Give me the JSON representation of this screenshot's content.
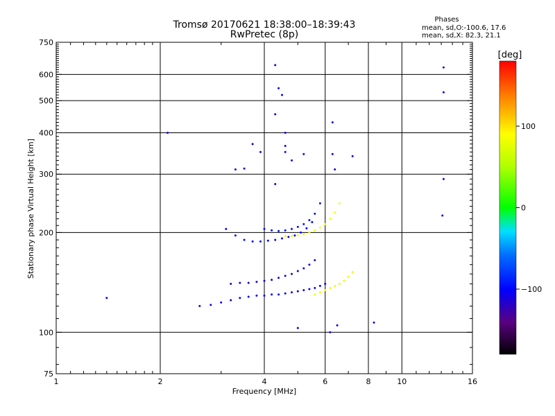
{
  "title": {
    "line1": "Tromsø 20170621 18:38:00–18:39:43",
    "line2": "RwPretec (8p)"
  },
  "stats": {
    "heading": "Phases",
    "o_line": "mean, sd,O:-100.6, 17.6",
    "x_line": "mean, sd,X:  82.3, 21.1"
  },
  "chart_data": {
    "type": "scatter",
    "xlabel": "Frequency [MHz]",
    "ylabel": "Stationary phase Virtual Height [km]",
    "xscale": "log",
    "yscale": "log",
    "xlim": [
      1,
      16
    ],
    "ylim": [
      75,
      750
    ],
    "grid": true,
    "x_ticks": [
      1,
      2,
      4,
      6,
      8,
      10,
      16
    ],
    "x_gridlines": [
      2,
      4,
      6,
      8,
      10
    ],
    "y_ticks": [
      75,
      100,
      200,
      300,
      400,
      500,
      600,
      750
    ],
    "y_gridlines": [
      100,
      200,
      300,
      400,
      500,
      600
    ],
    "colorbar": {
      "label": "[deg]",
      "range": [
        -180,
        180
      ],
      "ticks": [
        -100,
        0,
        100
      ]
    },
    "traces": [
      {
        "name": "o-trace-low",
        "f": [
          2.6,
          2.8,
          3.0,
          3.2,
          3.4,
          3.6,
          3.8,
          4.0,
          4.2,
          4.4,
          4.6,
          4.8,
          5.0,
          5.2,
          5.4,
          5.6,
          5.8,
          6.0
        ],
        "h": [
          120,
          121,
          123,
          125,
          127,
          128,
          129,
          129,
          130,
          130,
          131,
          132,
          133,
          134,
          135,
          136,
          138,
          140
        ],
        "phase": -105
      },
      {
        "name": "o-trace-mid",
        "f": [
          3.2,
          3.4,
          3.6,
          3.8,
          4.0,
          4.2,
          4.4,
          4.6,
          4.8,
          5.0,
          5.2,
          5.4,
          5.6
        ],
        "h": [
          140,
          141,
          141,
          142,
          143,
          144,
          146,
          148,
          150,
          153,
          156,
          160,
          165
        ],
        "phase": -110
      },
      {
        "name": "o-trace-F1",
        "f": [
          3.1,
          3.3,
          3.5,
          3.7,
          3.9,
          4.1,
          4.3,
          4.5,
          4.7,
          4.9,
          5.1,
          5.3,
          5.5
        ],
        "h": [
          205,
          196,
          190,
          188,
          188,
          189,
          190,
          192,
          194,
          196,
          200,
          206,
          215
        ],
        "phase": -100
      },
      {
        "name": "o-trace-F2",
        "f": [
          4.0,
          4.2,
          4.4,
          4.6,
          4.8,
          5.0,
          5.2,
          5.4,
          5.6,
          5.8
        ],
        "h": [
          205,
          203,
          202,
          203,
          205,
          208,
          212,
          218,
          228,
          245
        ],
        "phase": -95
      },
      {
        "name": "x-trace-F",
        "f": [
          4.6,
          4.8,
          5.0,
          5.2,
          5.4,
          5.6,
          5.8,
          6.0,
          6.2,
          6.4,
          6.6
        ],
        "h": [
          195,
          195,
          196,
          198,
          200,
          203,
          207,
          212,
          220,
          230,
          245
        ],
        "phase": 85
      },
      {
        "name": "x-trace-E",
        "f": [
          5.6,
          5.8,
          6.0,
          6.2,
          6.4,
          6.6,
          6.8,
          7.0,
          7.2
        ],
        "h": [
          130,
          132,
          134,
          136,
          138,
          140,
          143,
          147,
          152
        ],
        "phase": 80
      },
      {
        "name": "spread",
        "f": [
          4.3,
          4.4,
          4.5,
          4.6,
          4.3,
          5.2,
          6.3,
          6.3,
          4.3,
          4.6,
          4.8,
          3.3,
          3.5,
          3.9,
          6.4,
          8.3,
          13.2,
          13.2,
          13.2,
          2.1,
          1.4,
          5.0,
          6.2,
          6.5,
          13.1,
          7.2,
          4.6,
          3.7
        ],
        "h": [
          640,
          545,
          520,
          365,
          455,
          345,
          430,
          345,
          280,
          350,
          330,
          310,
          312,
          350,
          310,
          107,
          630,
          530,
          290,
          400,
          127,
          103,
          100,
          105,
          225,
          340,
          400,
          370
        ],
        "phase": -105
      }
    ]
  }
}
